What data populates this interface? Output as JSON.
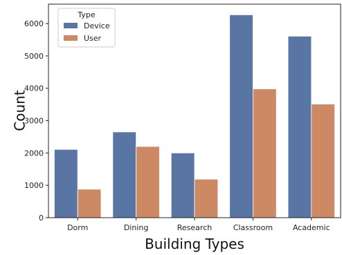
{
  "chart_data": {
    "type": "bar",
    "categories": [
      "Dorm",
      "Dining",
      "Research",
      "Classroom",
      "Academic"
    ],
    "series": [
      {
        "name": "Device",
        "color": "#5875a4",
        "values": [
          2110,
          2650,
          2000,
          6270,
          5610
        ]
      },
      {
        "name": "User",
        "color": "#cc8963",
        "values": [
          880,
          2200,
          1190,
          3980,
          3510
        ]
      }
    ],
    "xlabel": "Building Types",
    "ylabel": "Count",
    "ylim": [
      0,
      6600
    ],
    "yticks": [
      "0",
      "1000",
      "2000",
      "3000",
      "4000",
      "5000",
      "6000"
    ],
    "grid": false,
    "legend": {
      "title": "Type",
      "placement": "top-left"
    }
  }
}
